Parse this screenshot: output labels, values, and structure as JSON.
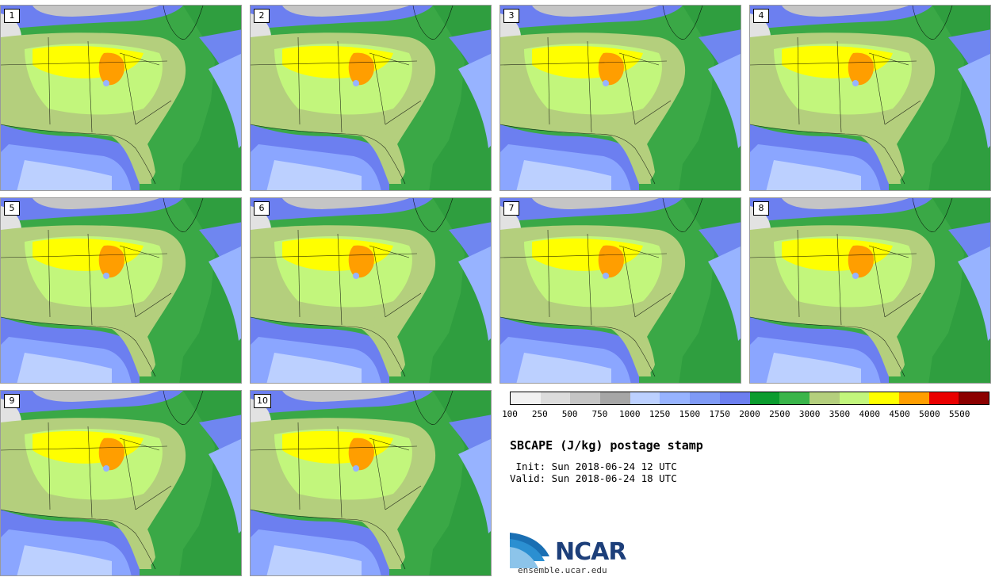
{
  "panels": [
    {
      "label": "1"
    },
    {
      "label": "2"
    },
    {
      "label": "3"
    },
    {
      "label": "4"
    },
    {
      "label": "5"
    },
    {
      "label": "6"
    },
    {
      "label": "7"
    },
    {
      "label": "8"
    },
    {
      "label": "9"
    },
    {
      "label": "10"
    }
  ],
  "colorbar": {
    "colors": [
      "#f2f2f2",
      "#dcdcdc",
      "#c5c5c5",
      "#a6a6a6",
      "#bcd0ff",
      "#97b3ff",
      "#7f9af6",
      "#6c7ff0",
      "#0b9c2e",
      "#3ab54a",
      "#b4cf7d",
      "#c2f67c",
      "#ffff00",
      "#ff9e00",
      "#ea0000",
      "#8b0000"
    ],
    "ticks": [
      "100",
      "250",
      "500",
      "750",
      "1000",
      "1250",
      "1500",
      "1750",
      "2000",
      "2500",
      "3000",
      "3500",
      "4000",
      "4500",
      "5000",
      "5500"
    ]
  },
  "title": "SBCAPE (J/kg) postage stamp",
  "init": " Init: Sun 2018-06-24 12 UTC",
  "valid": "Valid: Sun 2018-06-24 18 UTC",
  "logo": {
    "text": "NCAR",
    "site": "ensemble.ucar.edu"
  }
}
